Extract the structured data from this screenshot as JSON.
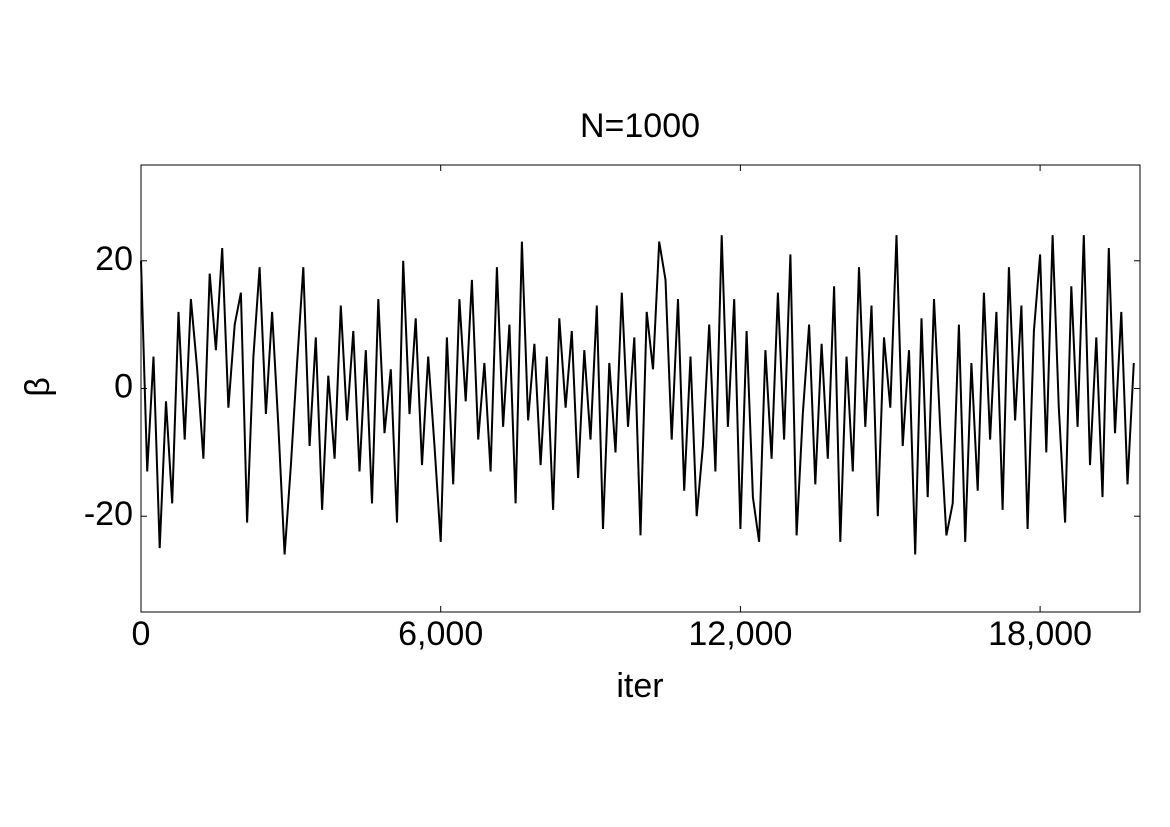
{
  "chart_data": {
    "type": "line",
    "title": "N=1000",
    "x_label": "iter",
    "y_label": "β",
    "color": "#000000",
    "x": [
      0,
      125,
      250,
      375,
      500,
      625,
      750,
      875,
      1000,
      1125,
      1250,
      1375,
      1500,
      1625,
      1750,
      1875,
      2000,
      2125,
      2250,
      2375,
      2500,
      2625,
      2750,
      2875,
      3000,
      3125,
      3250,
      3375,
      3500,
      3625,
      3750,
      3875,
      4000,
      4125,
      4250,
      4375,
      4500,
      4625,
      4750,
      4875,
      5000,
      5125,
      5250,
      5375,
      5500,
      5625,
      5750,
      5875,
      6000,
      6125,
      6250,
      6375,
      6500,
      6625,
      6750,
      6875,
      7000,
      7125,
      7250,
      7375,
      7500,
      7625,
      7750,
      7875,
      8000,
      8125,
      8250,
      8375,
      8500,
      8625,
      8750,
      8875,
      9000,
      9125,
      9250,
      9375,
      9500,
      9625,
      9750,
      9875,
      10000,
      10125,
      10250,
      10375,
      10500,
      10625,
      10750,
      10875,
      11000,
      11125,
      11250,
      11375,
      11500,
      11625,
      11750,
      11875,
      12000,
      12125,
      12250,
      12375,
      12500,
      12625,
      12750,
      12875,
      13000,
      13125,
      13250,
      13375,
      13500,
      13625,
      13750,
      13875,
      14000,
      14125,
      14250,
      14375,
      14500,
      14625,
      14750,
      14875,
      15000,
      15125,
      15250,
      15375,
      15500,
      15625,
      15750,
      15875,
      16000,
      16125,
      16250,
      16375,
      16500,
      16625,
      16750,
      16875,
      17000,
      17125,
      17250,
      17375,
      17500,
      17625,
      17750,
      17875,
      18000,
      18125,
      18250,
      18375,
      18500,
      18625,
      18750,
      18875,
      19000,
      19125,
      19250,
      19375,
      19500,
      19625,
      19750,
      19875
    ],
    "values": [
      20,
      -13,
      5,
      -25,
      -2,
      -18,
      12,
      -8,
      14,
      3,
      -11,
      18,
      6,
      22,
      -3,
      10,
      15,
      -21,
      5,
      19,
      -4,
      12,
      -6,
      -26,
      -12,
      4,
      19,
      -9,
      8,
      -19,
      2,
      -11,
      13,
      -5,
      9,
      -13,
      6,
      -18,
      14,
      -7,
      3,
      -21,
      20,
      -4,
      11,
      -12,
      5,
      -9,
      -24,
      8,
      -15,
      14,
      -2,
      17,
      -8,
      4,
      -13,
      19,
      -6,
      10,
      -18,
      23,
      -5,
      7,
      -12,
      5,
      -19,
      11,
      -3,
      9,
      -14,
      6,
      -8,
      13,
      -22,
      4,
      -10,
      15,
      -6,
      8,
      -23,
      12,
      3,
      23,
      17,
      -8,
      14,
      -16,
      5,
      -20,
      -9,
      10,
      -13,
      24,
      -6,
      14,
      -22,
      9,
      -17,
      -24,
      6,
      -11,
      15,
      -8,
      21,
      -23,
      -4,
      10,
      -15,
      7,
      -11,
      16,
      -24,
      5,
      -13,
      19,
      -6,
      13,
      -20,
      8,
      -3,
      24,
      -9,
      6,
      -26,
      11,
      -17,
      14,
      -6,
      -23,
      -18,
      10,
      -24,
      4,
      -16,
      15,
      -8,
      12,
      -19,
      19,
      -5,
      13,
      -22,
      9,
      21,
      -10,
      24,
      -3,
      -21,
      16,
      -6,
      24,
      -12,
      8,
      -17,
      22,
      -7,
      12,
      -15,
      4
    ],
    "xlim": [
      0,
      20000
    ],
    "ylim": [
      -35,
      35
    ],
    "xticks": [
      0,
      {
        "value": 6000,
        "label": "6,000"
      },
      {
        "value": 12000,
        "label": "12,000"
      },
      {
        "value": 18000,
        "label": "18,000"
      }
    ],
    "yticks": [
      -20,
      0,
      20
    ]
  }
}
